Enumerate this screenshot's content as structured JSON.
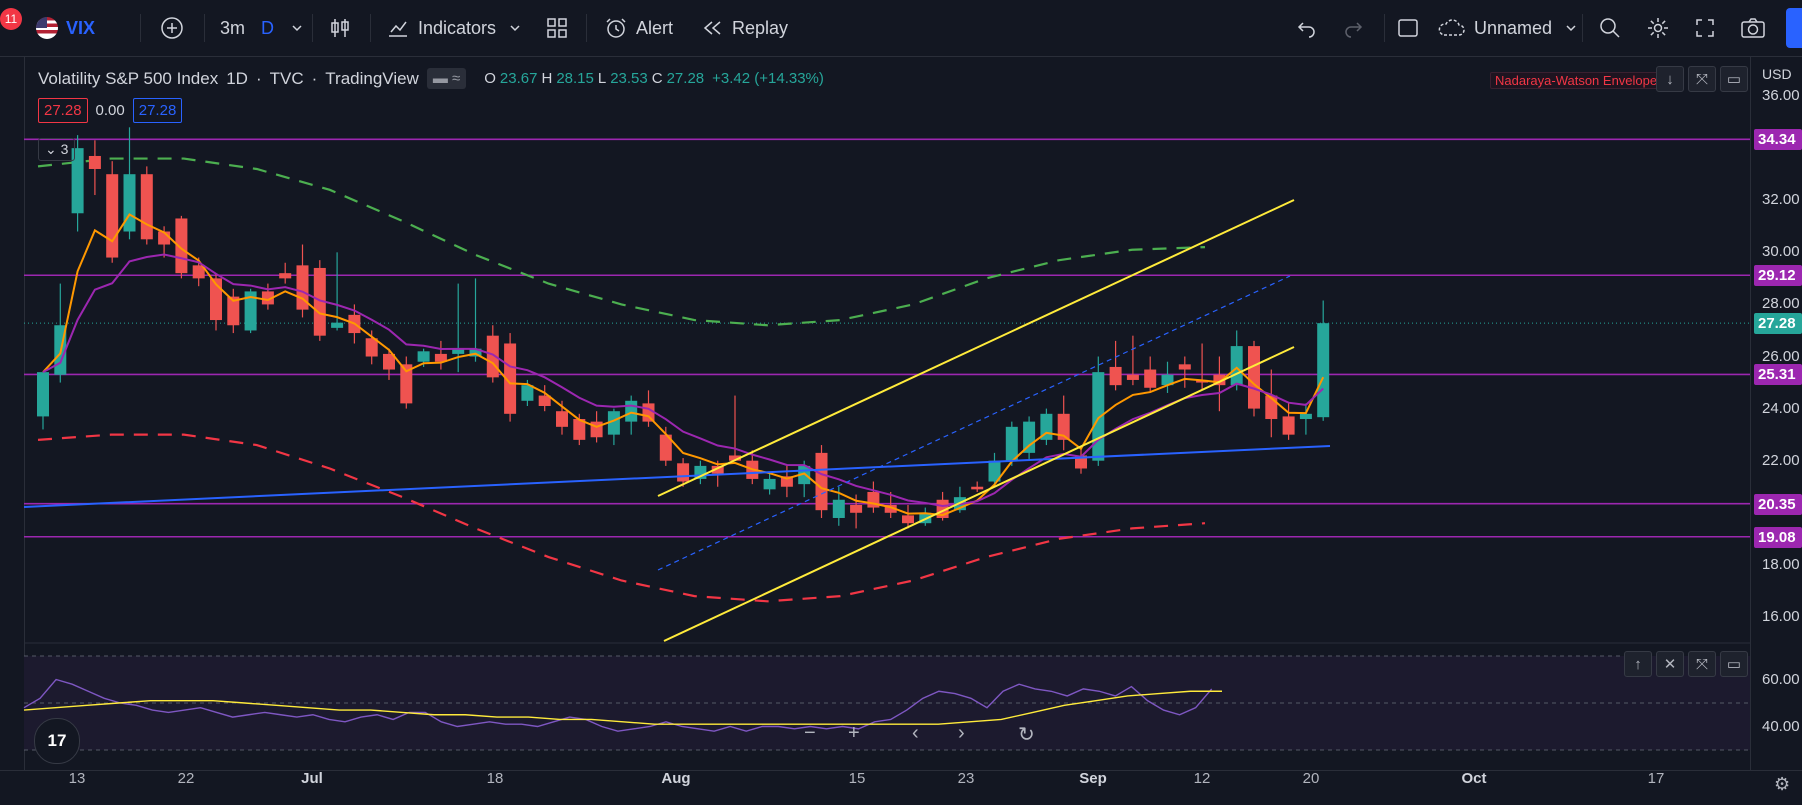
{
  "toolbar": {
    "badge_count": "11",
    "symbol": "VIX",
    "interval": "3m",
    "interval_mode": "D",
    "indicators_label": "Indicators",
    "alert_label": "Alert",
    "replay_label": "Replay",
    "layout_name": "Unnamed"
  },
  "legend": {
    "title": "Volatility S&P 500 Index",
    "timeframe": "1D",
    "source": "TVC",
    "provider": "TradingView",
    "open": "23.67",
    "high": "28.15",
    "low": "23.53",
    "close": "27.28",
    "change": "+3.42 (+14.33%)",
    "bid": "27.28",
    "spread": "0.00",
    "ask": "27.28",
    "folded_count": "3",
    "indicator_name": "Nadaraya-Watson Envelope"
  },
  "price_axis": {
    "currency": "USD",
    "ticks": [
      "36.00",
      "32.00",
      "30.00",
      "28.00",
      "26.00",
      "24.00",
      "22.00",
      "18.00",
      "16.00"
    ],
    "tags": [
      {
        "label": "34.34",
        "color": "#9c27b0"
      },
      {
        "label": "29.12",
        "color": "#9c27b0"
      },
      {
        "label": "27.28",
        "color": "#26a69a"
      },
      {
        "label": "25.31",
        "color": "#9c27b0"
      },
      {
        "label": "20.35",
        "color": "#9c27b0"
      },
      {
        "label": "19.08",
        "color": "#9c27b0"
      }
    ]
  },
  "rsi_axis": {
    "ticks": [
      "60.00",
      "40.00"
    ]
  },
  "time_axis": {
    "labels": [
      "13",
      "22",
      "Jul",
      "18",
      "Aug",
      "15",
      "23",
      "Sep",
      "12",
      "20",
      "Oct",
      "17"
    ]
  },
  "colors": {
    "up": "#26a69a",
    "down": "#ef5350",
    "horizontal": "#9c27b0",
    "channel": "#ffeb3b",
    "trend": "#2962ff",
    "env_upper": "#4caf50",
    "env_lower": "#f23645",
    "ma_fast": "#ff9800",
    "ma_slow": "#9c27b0",
    "rsi": "#7e57c2",
    "rsi_ma": "#ffeb3b"
  },
  "chart_data": {
    "type": "candlestick",
    "title": "Volatility S&P 500 Index",
    "ylim": [
      15,
      37.5
    ],
    "horizontal_levels": [
      34.34,
      29.12,
      25.31,
      20.35,
      19.08
    ],
    "last_price": 27.28,
    "candles": [
      {
        "o": 23.7,
        "h": 25.2,
        "l": 23.2,
        "c": 25.4
      },
      {
        "o": 25.3,
        "h": 28.8,
        "l": 25.0,
        "c": 27.2
      },
      {
        "o": 31.5,
        "h": 34.5,
        "l": 30.8,
        "c": 34.0
      },
      {
        "o": 33.7,
        "h": 34.3,
        "l": 32.2,
        "c": 33.2
      },
      {
        "o": 33.0,
        "h": 33.5,
        "l": 29.6,
        "c": 29.8
      },
      {
        "o": 30.8,
        "h": 34.8,
        "l": 30.5,
        "c": 33.0
      },
      {
        "o": 33.0,
        "h": 33.3,
        "l": 30.3,
        "c": 30.5
      },
      {
        "o": 30.8,
        "h": 31.0,
        "l": 29.8,
        "c": 30.3
      },
      {
        "o": 31.3,
        "h": 31.4,
        "l": 29.0,
        "c": 29.2
      },
      {
        "o": 29.5,
        "h": 29.8,
        "l": 28.7,
        "c": 29.0
      },
      {
        "o": 29.0,
        "h": 29.2,
        "l": 27.0,
        "c": 27.4
      },
      {
        "o": 28.3,
        "h": 28.6,
        "l": 26.9,
        "c": 27.2
      },
      {
        "o": 27.0,
        "h": 28.6,
        "l": 26.9,
        "c": 28.5
      },
      {
        "o": 28.5,
        "h": 28.8,
        "l": 27.8,
        "c": 28.0
      },
      {
        "o": 29.2,
        "h": 29.6,
        "l": 28.8,
        "c": 29.0
      },
      {
        "o": 29.5,
        "h": 30.3,
        "l": 27.5,
        "c": 27.8
      },
      {
        "o": 29.4,
        "h": 29.7,
        "l": 26.6,
        "c": 26.8
      },
      {
        "o": 27.1,
        "h": 30.0,
        "l": 27.0,
        "c": 27.3
      },
      {
        "o": 27.6,
        "h": 28.0,
        "l": 26.5,
        "c": 26.9
      },
      {
        "o": 26.7,
        "h": 27.0,
        "l": 25.7,
        "c": 26.0
      },
      {
        "o": 26.1,
        "h": 26.3,
        "l": 25.1,
        "c": 25.5
      },
      {
        "o": 25.7,
        "h": 26.0,
        "l": 24.0,
        "c": 24.2
      },
      {
        "o": 25.8,
        "h": 26.3,
        "l": 25.6,
        "c": 26.2
      },
      {
        "o": 26.1,
        "h": 26.6,
        "l": 25.5,
        "c": 25.8
      },
      {
        "o": 26.1,
        "h": 28.8,
        "l": 25.4,
        "c": 26.3
      },
      {
        "o": 26.0,
        "h": 29.0,
        "l": 25.8,
        "c": 26.3
      },
      {
        "o": 26.8,
        "h": 27.2,
        "l": 25.0,
        "c": 25.2
      },
      {
        "o": 26.5,
        "h": 26.9,
        "l": 23.5,
        "c": 23.8
      },
      {
        "o": 24.3,
        "h": 25.1,
        "l": 24.1,
        "c": 24.9
      },
      {
        "o": 24.5,
        "h": 24.9,
        "l": 23.9,
        "c": 24.1
      },
      {
        "o": 23.9,
        "h": 24.3,
        "l": 23.0,
        "c": 23.3
      },
      {
        "o": 23.6,
        "h": 23.8,
        "l": 22.6,
        "c": 22.8
      },
      {
        "o": 23.5,
        "h": 23.9,
        "l": 22.7,
        "c": 22.9
      },
      {
        "o": 23.0,
        "h": 24.0,
        "l": 22.6,
        "c": 23.9
      },
      {
        "o": 23.5,
        "h": 24.5,
        "l": 23.0,
        "c": 24.3
      },
      {
        "o": 24.2,
        "h": 24.7,
        "l": 23.3,
        "c": 23.5
      },
      {
        "o": 23.0,
        "h": 23.3,
        "l": 21.8,
        "c": 22.0
      },
      {
        "o": 21.9,
        "h": 22.1,
        "l": 21.0,
        "c": 21.2
      },
      {
        "o": 21.3,
        "h": 22.0,
        "l": 21.1,
        "c": 21.8
      },
      {
        "o": 21.8,
        "h": 22.0,
        "l": 21.0,
        "c": 21.5
      },
      {
        "o": 22.2,
        "h": 24.5,
        "l": 22.0,
        "c": 22.0
      },
      {
        "o": 22.0,
        "h": 22.4,
        "l": 21.1,
        "c": 21.3
      },
      {
        "o": 20.9,
        "h": 21.5,
        "l": 20.7,
        "c": 21.3
      },
      {
        "o": 21.4,
        "h": 21.8,
        "l": 20.6,
        "c": 21.0
      },
      {
        "o": 21.1,
        "h": 22.0,
        "l": 20.6,
        "c": 21.8
      },
      {
        "o": 22.3,
        "h": 22.6,
        "l": 19.8,
        "c": 20.1
      },
      {
        "o": 19.8,
        "h": 21.0,
        "l": 19.5,
        "c": 20.5
      },
      {
        "o": 20.3,
        "h": 20.7,
        "l": 19.4,
        "c": 20.0
      },
      {
        "o": 20.8,
        "h": 21.2,
        "l": 20.0,
        "c": 20.2
      },
      {
        "o": 20.3,
        "h": 20.8,
        "l": 19.8,
        "c": 20.0
      },
      {
        "o": 19.9,
        "h": 20.3,
        "l": 19.4,
        "c": 19.6
      },
      {
        "o": 19.6,
        "h": 20.2,
        "l": 19.5,
        "c": 20.0
      },
      {
        "o": 20.5,
        "h": 20.8,
        "l": 19.7,
        "c": 19.8
      },
      {
        "o": 20.1,
        "h": 21.0,
        "l": 20.0,
        "c": 20.6
      },
      {
        "o": 21.0,
        "h": 21.2,
        "l": 20.8,
        "c": 20.9
      },
      {
        "o": 21.2,
        "h": 22.3,
        "l": 21.0,
        "c": 22.0
      },
      {
        "o": 22.0,
        "h": 23.5,
        "l": 21.8,
        "c": 23.3
      },
      {
        "o": 22.3,
        "h": 23.7,
        "l": 22.0,
        "c": 23.5
      },
      {
        "o": 22.8,
        "h": 24.0,
        "l": 22.6,
        "c": 23.8
      },
      {
        "o": 23.8,
        "h": 24.5,
        "l": 22.4,
        "c": 22.8
      },
      {
        "o": 22.2,
        "h": 22.5,
        "l": 21.5,
        "c": 21.7
      },
      {
        "o": 22.0,
        "h": 26.0,
        "l": 21.8,
        "c": 25.4
      },
      {
        "o": 25.6,
        "h": 26.6,
        "l": 24.7,
        "c": 24.9
      },
      {
        "o": 25.3,
        "h": 26.8,
        "l": 24.9,
        "c": 25.1
      },
      {
        "o": 25.5,
        "h": 26.0,
        "l": 24.6,
        "c": 24.8
      },
      {
        "o": 24.9,
        "h": 25.8,
        "l": 24.6,
        "c": 25.3
      },
      {
        "o": 25.7,
        "h": 26.0,
        "l": 24.8,
        "c": 25.5
      },
      {
        "o": 25.1,
        "h": 26.5,
        "l": 24.7,
        "c": 25.0
      },
      {
        "o": 25.3,
        "h": 26.0,
        "l": 23.9,
        "c": 24.9
      },
      {
        "o": 24.9,
        "h": 27.0,
        "l": 24.7,
        "c": 26.4
      },
      {
        "o": 26.4,
        "h": 26.6,
        "l": 23.7,
        "c": 24.0
      },
      {
        "o": 24.5,
        "h": 25.5,
        "l": 22.9,
        "c": 23.6
      },
      {
        "o": 23.7,
        "h": 24.2,
        "l": 22.8,
        "c": 23.0
      },
      {
        "o": 23.6,
        "h": 24.2,
        "l": 23.0,
        "c": 23.8
      },
      {
        "o": 23.67,
        "h": 28.15,
        "l": 23.53,
        "c": 27.28
      }
    ],
    "envelope_upper": [
      33.3,
      33.6,
      33.6,
      33.2,
      32.4,
      31.2,
      29.9,
      28.8,
      28.0,
      27.4,
      27.2,
      27.4,
      28.0,
      29.0,
      29.7,
      30.1,
      30.2
    ],
    "envelope_lower": [
      22.8,
      23.0,
      23.0,
      22.6,
      21.7,
      20.6,
      19.4,
      18.3,
      17.4,
      16.8,
      16.6,
      16.8,
      17.4,
      18.3,
      19.0,
      19.4,
      19.6
    ],
    "rsi": [
      48,
      52,
      60,
      58,
      55,
      52,
      50,
      49,
      47,
      46,
      47,
      48,
      46,
      44,
      45,
      46,
      45,
      44,
      45,
      43,
      42,
      44,
      45,
      43,
      46,
      46,
      42,
      40,
      41,
      42,
      41,
      41,
      40,
      42,
      44,
      43,
      40,
      38,
      39,
      40,
      42,
      40,
      39,
      38,
      40,
      38,
      40,
      40,
      39,
      40,
      39,
      40,
      39,
      42,
      43,
      47,
      52,
      55,
      54,
      52,
      48,
      55,
      58,
      56,
      55,
      53,
      56,
      55,
      53,
      57,
      51,
      47,
      45,
      48,
      56
    ],
    "rsi_ma": [
      47,
      48,
      49,
      50,
      51,
      51,
      51,
      50,
      49,
      48,
      47,
      47,
      46,
      45,
      45,
      44,
      44,
      43,
      43,
      42,
      41,
      41,
      41,
      41,
      41,
      41,
      41,
      41,
      41,
      41,
      42,
      43,
      46,
      49,
      51,
      53,
      54,
      55,
      55
    ]
  }
}
